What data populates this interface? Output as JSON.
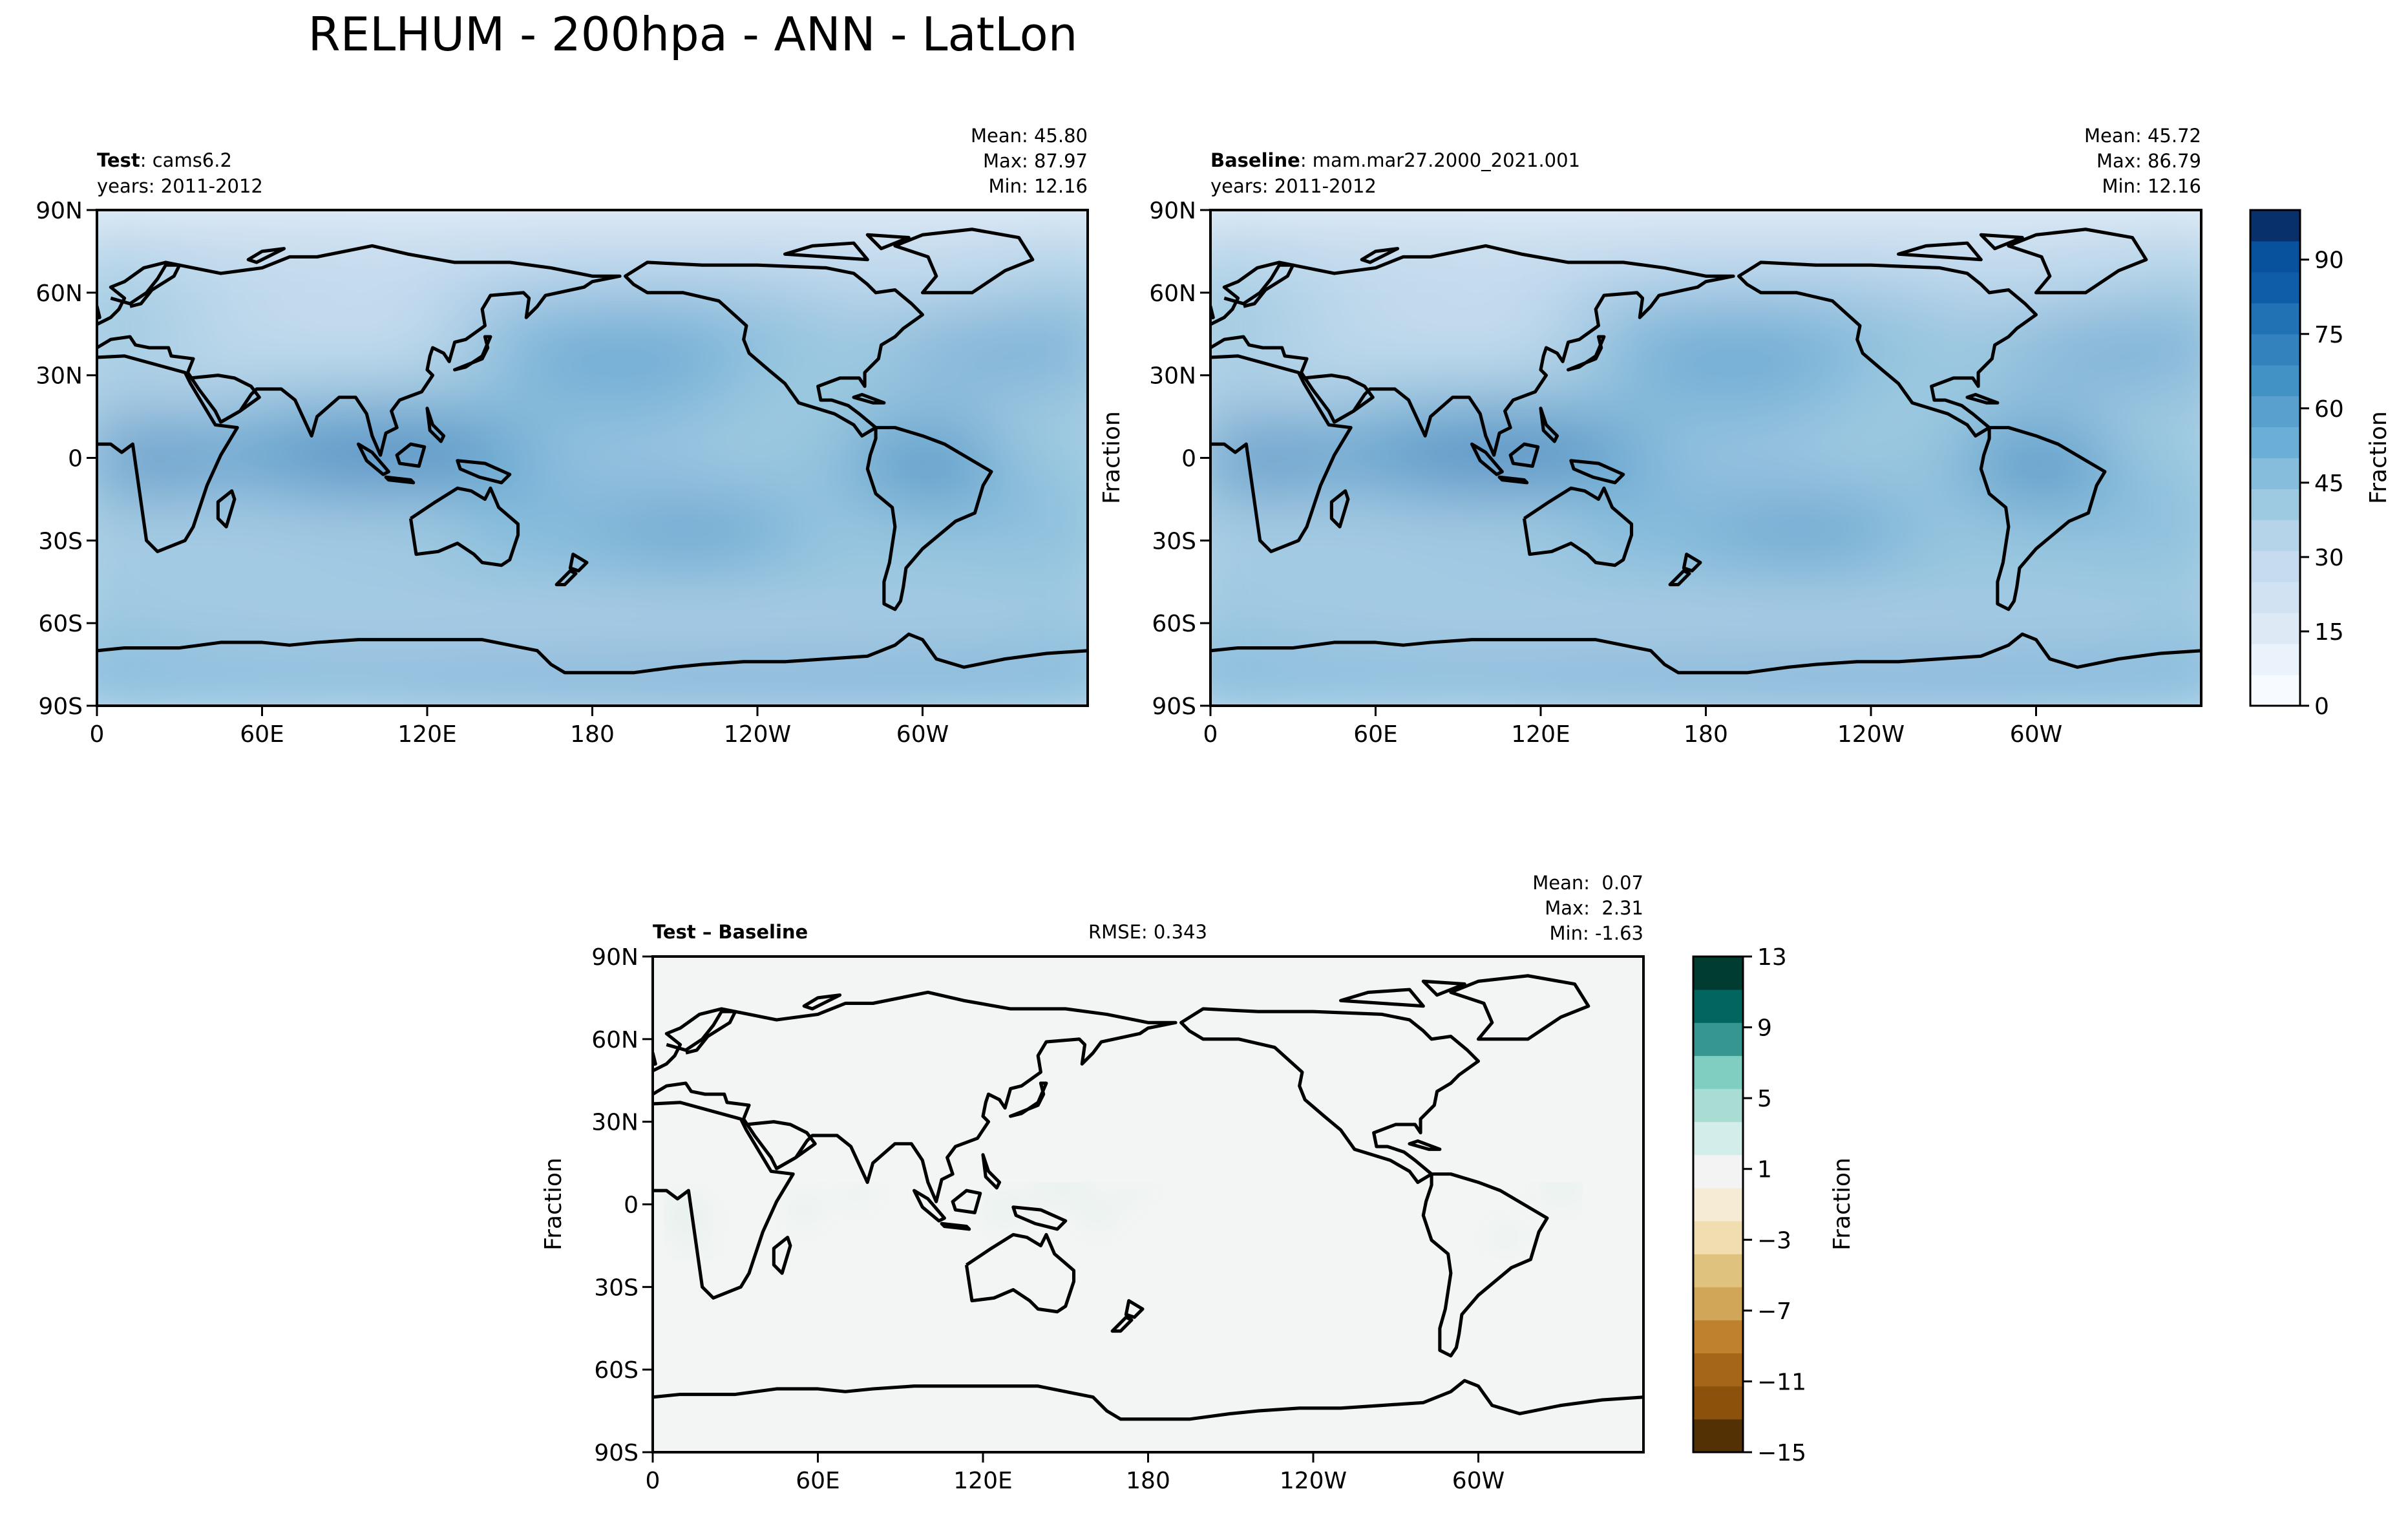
{
  "figure": {
    "suptitle": "RELHUM - 200hpa - ANN - LatLon"
  },
  "chart_data": [
    {
      "type": "heatmap",
      "panel": "test",
      "label_bold": "Test",
      "label_rest": ": cams6.2",
      "years": "years: 2011-2012",
      "stats": [
        "Mean: 45.80",
        "Max: 87.97",
        "Min: 12.16"
      ],
      "xticks": [
        "0",
        "60E",
        "120E",
        "180",
        "120W",
        "60W"
      ],
      "yticks": [
        "90N",
        "60N",
        "30N",
        "0",
        "30S",
        "60S",
        "90S"
      ],
      "xlim": [
        0,
        360
      ],
      "ylim": [
        -90,
        90
      ],
      "ylabel": "",
      "value_range": [
        12.16,
        87.97
      ]
    },
    {
      "type": "heatmap",
      "panel": "baseline",
      "label_bold": "Baseline",
      "label_rest": ": mam.mar27.2000_2021.001",
      "years": "years: 2011-2012",
      "stats": [
        "Mean: 45.72",
        "Max: 86.79",
        "Min: 12.16"
      ],
      "xticks": [
        "0",
        "60E",
        "120E",
        "180",
        "120W",
        "60W"
      ],
      "yticks": [
        "90N",
        "60N",
        "30N",
        "0",
        "30S",
        "60S",
        "90S"
      ],
      "xlim": [
        0,
        360
      ],
      "ylim": [
        -90,
        90
      ],
      "ylabel": "Fraction",
      "value_range": [
        12.16,
        86.79
      ],
      "colorbar": {
        "label": "Fraction",
        "ticks": [
          "0",
          "15",
          "30",
          "45",
          "60",
          "75",
          "90"
        ],
        "range": [
          0,
          100
        ],
        "colors": [
          "#f7fbff",
          "#eaf2fb",
          "#dee9f6",
          "#d1e2f2",
          "#c6dbef",
          "#b6d4e9",
          "#9ecae1",
          "#86bcdc",
          "#6baed6",
          "#5aa0cf",
          "#4292c6",
          "#3382be",
          "#2171b5",
          "#0f5da8",
          "#08519c",
          "#08306b"
        ]
      }
    },
    {
      "type": "heatmap",
      "panel": "diff",
      "label_bold": "Test",
      "label_rest": " – Baseline",
      "rmse": "RMSE: 0.343",
      "stats": [
        "Mean:  0.07",
        "Max:  2.31",
        "Min: -1.63"
      ],
      "xticks": [
        "0",
        "60E",
        "120E",
        "180",
        "120W",
        "60W"
      ],
      "yticks": [
        "90N",
        "60N",
        "30N",
        "0",
        "30S",
        "60S",
        "90S"
      ],
      "xlim": [
        0,
        360
      ],
      "ylim": [
        -90,
        90
      ],
      "ylabel": "Fraction",
      "value_range": [
        -1.63,
        2.31
      ],
      "colorbar": {
        "label": "Fraction",
        "ticks": [
          "13",
          "9",
          "5",
          "1",
          "−3",
          "−7",
          "−11",
          "−15"
        ],
        "range": [
          -15,
          13
        ],
        "colors": [
          "#543005",
          "#8c510a",
          "#a6661a",
          "#bf812d",
          "#d2a659",
          "#dfc27d",
          "#f0deb0",
          "#f6ecd6",
          "#f3f3f3",
          "#d3eeea",
          "#a9ddd3",
          "#80cdc1",
          "#35978f",
          "#01665e",
          "#003c30"
        ]
      }
    }
  ]
}
